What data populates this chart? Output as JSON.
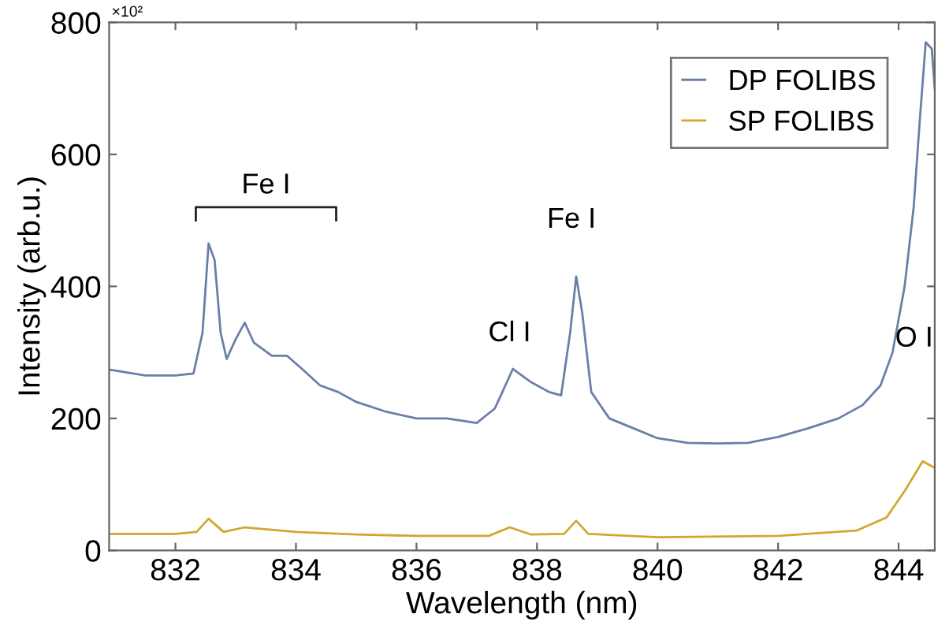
{
  "chart_data": {
    "type": "line",
    "xlabel": "Wavelength (nm)",
    "ylabel": "Intensity (arb.u.)",
    "xlim": [
      830.9,
      844.6
    ],
    "ylim": [
      0,
      800
    ],
    "xticks": [
      832,
      834,
      836,
      838,
      840,
      842,
      844
    ],
    "yticks": [
      0,
      200,
      400,
      600,
      800
    ],
    "grid": false,
    "legend": "top right",
    "marker": "none",
    "line_style": "solid",
    "annotations": [
      "×10²",
      "Fe I",
      "Fe I",
      "Cl I",
      "O I"
    ],
    "series": [
      {
        "name": "DP FOLIBS",
        "color": "#6a7fa8",
        "x": [
          830.9,
          831.5,
          832.0,
          832.3,
          832.45,
          832.55,
          832.65,
          832.75,
          832.85,
          833.0,
          833.15,
          833.3,
          833.6,
          833.85,
          834.1,
          834.4,
          834.7,
          835.0,
          835.5,
          836.0,
          836.5,
          837.0,
          837.3,
          837.6,
          837.9,
          838.2,
          838.4,
          838.55,
          838.65,
          838.75,
          838.9,
          839.2,
          839.6,
          840.0,
          840.5,
          841.0,
          841.5,
          842.0,
          842.5,
          843.0,
          843.4,
          843.7,
          843.9,
          844.1,
          844.25,
          844.35,
          844.45,
          844.55,
          844.6
        ],
        "values": [
          274,
          265,
          265,
          268,
          330,
          465,
          440,
          330,
          290,
          320,
          345,
          315,
          295,
          295,
          275,
          250,
          240,
          225,
          210,
          200,
          200,
          193,
          215,
          275,
          255,
          240,
          235,
          330,
          415,
          360,
          240,
          200,
          185,
          170,
          163,
          162,
          163,
          172,
          185,
          200,
          220,
          250,
          300,
          400,
          520,
          650,
          770,
          760,
          700
        ]
      },
      {
        "name": "SP FOLIBS",
        "color": "#d4a530",
        "x": [
          830.9,
          832.0,
          832.35,
          832.55,
          832.8,
          833.15,
          834.0,
          835.0,
          836.0,
          837.2,
          837.55,
          837.9,
          838.45,
          838.65,
          838.85,
          840.0,
          842.0,
          843.3,
          843.8,
          844.1,
          844.4,
          844.6
        ],
        "values": [
          25,
          25,
          28,
          48,
          28,
          35,
          28,
          24,
          22,
          22,
          35,
          24,
          25,
          45,
          25,
          20,
          22,
          30,
          50,
          90,
          135,
          125
        ]
      }
    ]
  }
}
